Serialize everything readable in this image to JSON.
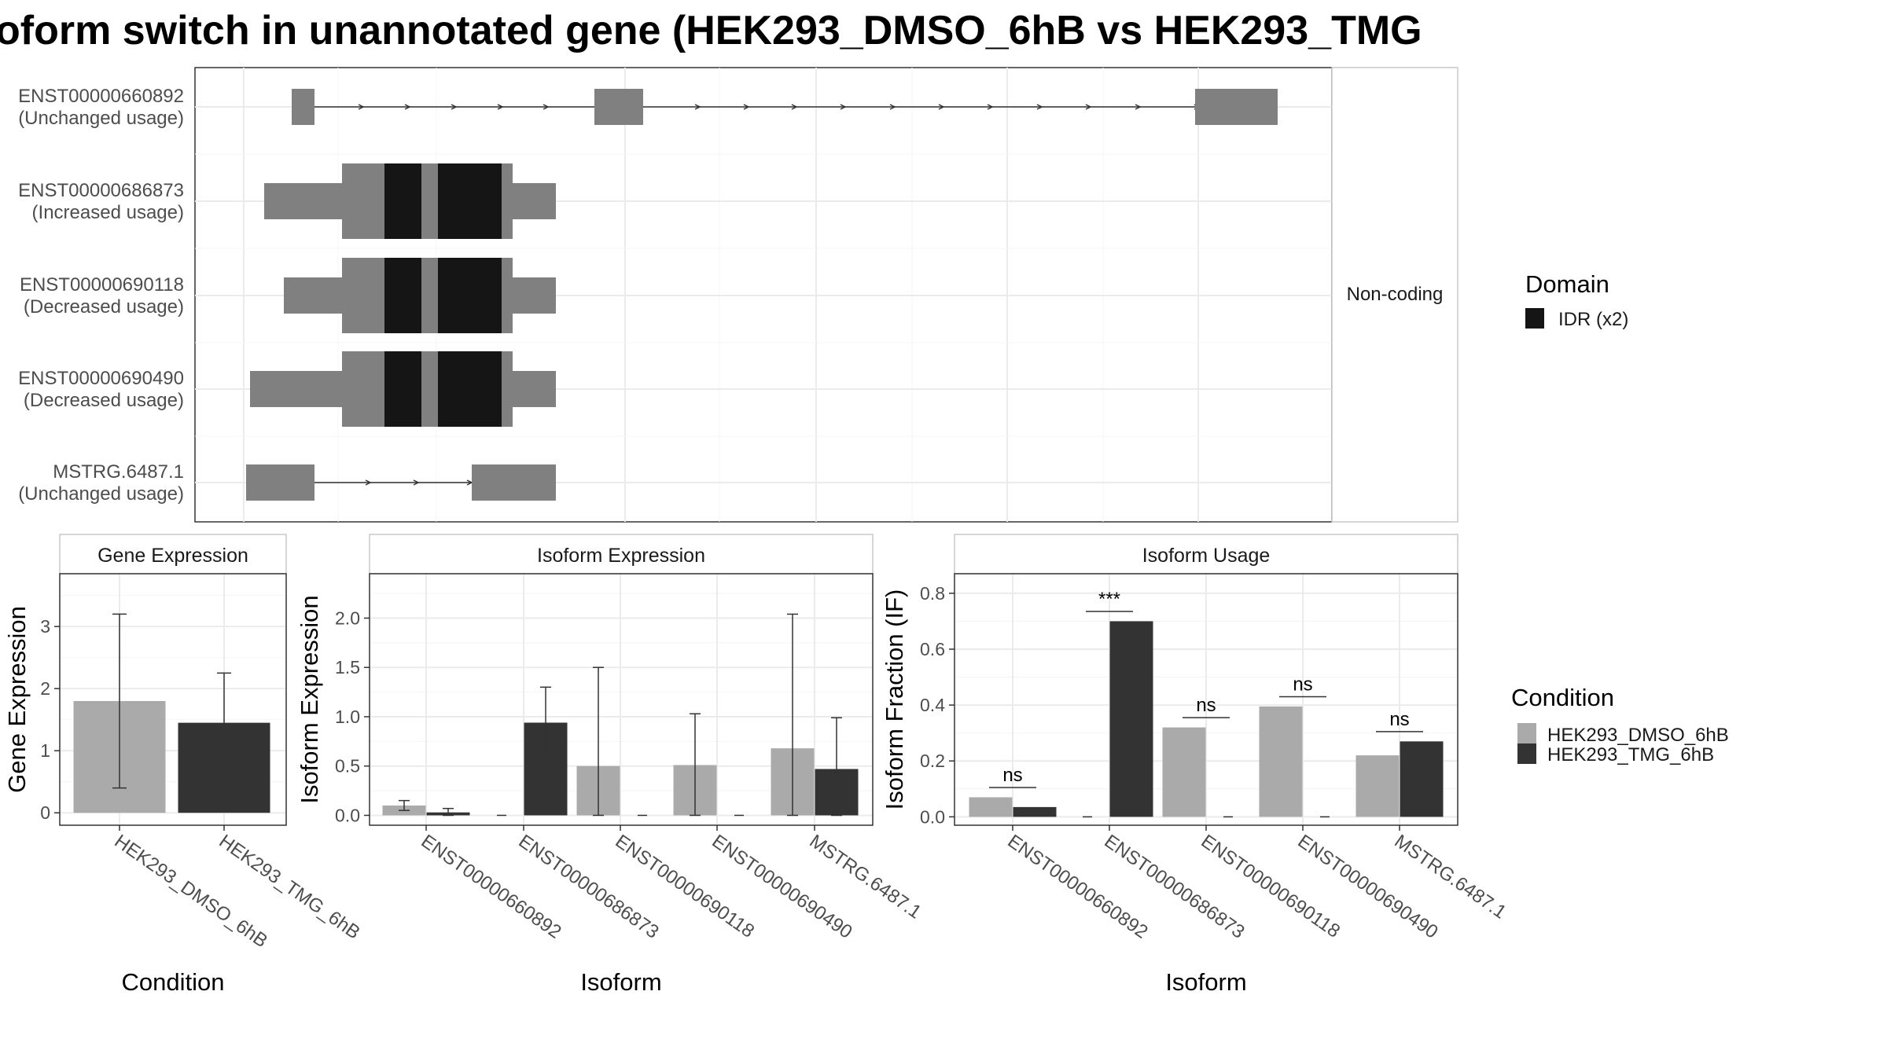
{
  "title": "oform switch in unannotated gene (HEK293_DMSO_6hB vs HEK293_TMG",
  "colors": {
    "dmso": "#aaaaaa",
    "tmg": "#333333",
    "exon": "#808080",
    "domain": "#151515",
    "grid": "#ebebeb",
    "panel_border": "#333333",
    "strip_border": "#c8c8c8"
  },
  "transcripts": {
    "strip_label": "Non-coding",
    "isoforms": [
      {
        "id": "ENST00000660892",
        "usage": "(Unchanged usage)"
      },
      {
        "id": "ENST00000686873",
        "usage": "(Increased usage)"
      },
      {
        "id": "ENST00000690118",
        "usage": "(Decreased usage)"
      },
      {
        "id": "ENST00000690490",
        "usage": "(Decreased usage)"
      },
      {
        "id": "MSTRG.6487.1",
        "usage": "(Unchanged usage)"
      }
    ],
    "domain_legend": {
      "title": "Domain",
      "items": [
        {
          "label": "IDR (x2)"
        }
      ]
    }
  },
  "chart_data": [
    {
      "type": "bar",
      "title": "Gene Expression",
      "xlabel": "Condition",
      "ylabel": "Gene Expression",
      "categories": [
        "HEK293_DMSO_6hB",
        "HEK293_TMG_6hB"
      ],
      "values": [
        1.8,
        1.45
      ],
      "error_low": [
        0.4,
        0.65
      ],
      "error_high": [
        3.2,
        2.25
      ],
      "yticks": [
        "0",
        "1",
        "2",
        "3"
      ],
      "ylim": [
        -0.2,
        3.85
      ]
    },
    {
      "type": "bar",
      "title": "Isoform Expression",
      "xlabel": "Isoform",
      "ylabel": "Isoform Expression",
      "categories": [
        "ENST00000660892",
        "ENST00000686873",
        "ENST00000690118",
        "ENST00000690490",
        "MSTRG.6487.1"
      ],
      "series": [
        {
          "name": "HEK293_DMSO_6hB",
          "values": [
            0.1,
            0.0,
            0.5,
            0.51,
            0.68
          ],
          "error_low": [
            0.05,
            0.0,
            0.0,
            0.0,
            0.0
          ],
          "error_high": [
            0.15,
            0.0,
            1.5,
            1.03,
            2.04
          ]
        },
        {
          "name": "HEK293_TMG_6hB",
          "values": [
            0.03,
            0.94,
            0.0,
            0.0,
            0.47
          ],
          "error_low": [
            0.0,
            0.58,
            0.0,
            0.0,
            0.0
          ],
          "error_high": [
            0.07,
            1.3,
            0.0,
            0.0,
            0.99
          ]
        }
      ],
      "yticks": [
        "0.0",
        "0.5",
        "1.0",
        "1.5",
        "2.0"
      ],
      "ylim": [
        -0.1,
        2.45
      ]
    },
    {
      "type": "bar",
      "title": "Isoform Usage",
      "xlabel": "Isoform",
      "ylabel": "Isoform Fraction (IF)",
      "categories": [
        "ENST00000660892",
        "ENST00000686873",
        "ENST00000690118",
        "ENST00000690490",
        "MSTRG.6487.1"
      ],
      "series": [
        {
          "name": "HEK293_DMSO_6hB",
          "values": [
            0.07,
            0.0,
            0.32,
            0.395,
            0.22
          ]
        },
        {
          "name": "HEK293_TMG_6hB",
          "values": [
            0.035,
            0.7,
            0.0,
            0.0,
            0.27
          ]
        }
      ],
      "significance": [
        "ns",
        "***",
        "ns",
        "ns",
        "ns"
      ],
      "sig_values": [
        0.105,
        0.735,
        0.355,
        0.43,
        0.305
      ],
      "yticks": [
        "0.0",
        "0.2",
        "0.4",
        "0.6",
        "0.8"
      ],
      "ylim": [
        -0.03,
        0.87
      ]
    }
  ],
  "condition_legend": {
    "title": "Condition",
    "items": [
      {
        "label": "HEK293_DMSO_6hB"
      },
      {
        "label": "HEK293_TMG_6hB"
      }
    ]
  }
}
